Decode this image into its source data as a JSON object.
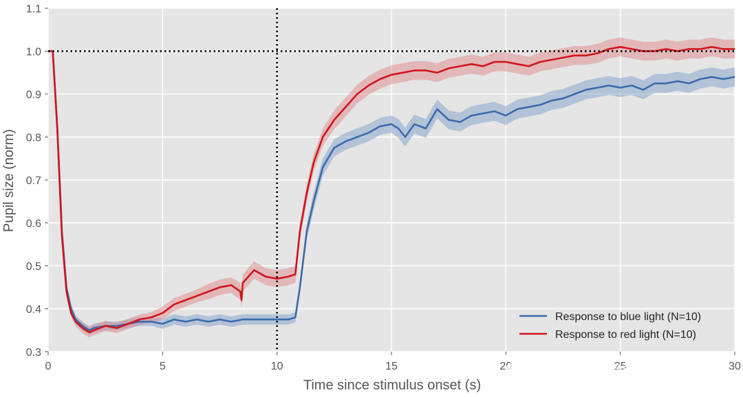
{
  "chart_data": {
    "type": "line",
    "title": "",
    "xlabel": "Time since stimulus onset (s)",
    "ylabel": "Pupil size (norm)",
    "xlim": [
      0,
      30
    ],
    "ylim": [
      0.3,
      1.1
    ],
    "xticks": [
      0,
      5,
      10,
      15,
      20,
      25,
      30
    ],
    "yticks": [
      0.3,
      0.4,
      0.5,
      0.6,
      0.7,
      0.8,
      0.9,
      1.0,
      1.1
    ],
    "xtick_labels": [
      "0",
      "5",
      "10",
      "15",
      "20",
      "25",
      "30"
    ],
    "ytick_labels": [
      "0.3",
      "0.4",
      "0.5",
      "0.6",
      "0.7",
      "0.8",
      "0.9",
      "1.0",
      "1.1"
    ],
    "grid": true,
    "legend_position": "lower-right",
    "reference_lines": [
      {
        "orientation": "vertical",
        "value": 10,
        "style": "dotted",
        "color": "#000000"
      },
      {
        "orientation": "horizontal",
        "value": 1.0,
        "style": "dotted",
        "color": "#000000"
      }
    ],
    "series": [
      {
        "name": "Response to blue light (N=10)",
        "color": "#3a6baa",
        "band_color": "#7f9fc9",
        "x": [
          0,
          0.2,
          0.4,
          0.6,
          0.8,
          1.0,
          1.2,
          1.5,
          1.8,
          2.0,
          2.5,
          3.0,
          3.5,
          4.0,
          4.5,
          5.0,
          5.5,
          6.0,
          6.5,
          7.0,
          7.5,
          8.0,
          8.5,
          9.0,
          9.5,
          10.0,
          10.5,
          10.8,
          11.0,
          11.3,
          11.6,
          12.0,
          12.5,
          13.0,
          13.5,
          14.0,
          14.5,
          15.0,
          15.3,
          15.6,
          16.0,
          16.5,
          17.0,
          17.5,
          18.0,
          18.5,
          19.0,
          19.5,
          20.0,
          20.5,
          21.0,
          21.5,
          22.0,
          22.5,
          23.0,
          23.5,
          24.0,
          24.5,
          25.0,
          25.5,
          26.0,
          26.5,
          27.0,
          27.5,
          28.0,
          28.5,
          29.0,
          29.5,
          30.0
        ],
        "y": [
          1.0,
          1.0,
          0.82,
          0.58,
          0.45,
          0.4,
          0.375,
          0.36,
          0.35,
          0.355,
          0.36,
          0.36,
          0.365,
          0.37,
          0.37,
          0.365,
          0.375,
          0.37,
          0.375,
          0.37,
          0.375,
          0.37,
          0.375,
          0.375,
          0.375,
          0.375,
          0.375,
          0.38,
          0.45,
          0.58,
          0.65,
          0.73,
          0.775,
          0.79,
          0.8,
          0.81,
          0.825,
          0.83,
          0.82,
          0.8,
          0.83,
          0.82,
          0.865,
          0.84,
          0.835,
          0.85,
          0.855,
          0.86,
          0.85,
          0.865,
          0.87,
          0.875,
          0.885,
          0.89,
          0.9,
          0.91,
          0.915,
          0.92,
          0.915,
          0.92,
          0.91,
          0.925,
          0.925,
          0.93,
          0.925,
          0.935,
          0.94,
          0.935,
          0.94
        ],
        "band": [
          0,
          0,
          0.01,
          0.01,
          0.01,
          0.01,
          0.01,
          0.01,
          0.01,
          0.01,
          0.01,
          0.01,
          0.01,
          0.01,
          0.01,
          0.012,
          0.012,
          0.012,
          0.012,
          0.012,
          0.012,
          0.012,
          0.012,
          0.012,
          0.012,
          0.012,
          0.012,
          0.012,
          0.015,
          0.018,
          0.02,
          0.02,
          0.02,
          0.02,
          0.02,
          0.02,
          0.02,
          0.02,
          0.022,
          0.022,
          0.022,
          0.022,
          0.022,
          0.022,
          0.022,
          0.022,
          0.022,
          0.022,
          0.022,
          0.022,
          0.022,
          0.022,
          0.022,
          0.022,
          0.022,
          0.022,
          0.022,
          0.022,
          0.022,
          0.022,
          0.022,
          0.022,
          0.022,
          0.022,
          0.022,
          0.022,
          0.022,
          0.022,
          0.022
        ]
      },
      {
        "name": "Response to red light (N=10)",
        "color": "#d0141b",
        "band_color": "#e08a8c",
        "x": [
          0,
          0.2,
          0.4,
          0.6,
          0.8,
          1.0,
          1.2,
          1.5,
          1.8,
          2.0,
          2.5,
          3.0,
          3.5,
          4.0,
          4.5,
          5.0,
          5.5,
          6.0,
          6.5,
          7.0,
          7.5,
          8.0,
          8.4,
          8.45,
          8.5,
          9.0,
          9.5,
          10.0,
          10.5,
          10.8,
          11.0,
          11.3,
          11.6,
          12.0,
          12.5,
          13.0,
          13.5,
          14.0,
          14.5,
          15.0,
          15.5,
          16.0,
          16.5,
          17.0,
          17.5,
          18.0,
          18.5,
          19.0,
          19.5,
          20.0,
          20.5,
          21.0,
          21.5,
          22.0,
          22.5,
          23.0,
          23.5,
          24.0,
          24.5,
          25.0,
          25.5,
          26.0,
          26.5,
          27.0,
          27.5,
          28.0,
          28.5,
          29.0,
          29.5,
          30.0
        ],
        "y": [
          1.0,
          1.0,
          0.82,
          0.57,
          0.44,
          0.39,
          0.37,
          0.355,
          0.345,
          0.35,
          0.36,
          0.355,
          0.365,
          0.375,
          0.38,
          0.39,
          0.41,
          0.42,
          0.43,
          0.44,
          0.45,
          0.455,
          0.44,
          0.42,
          0.46,
          0.49,
          0.475,
          0.47,
          0.475,
          0.48,
          0.58,
          0.67,
          0.74,
          0.8,
          0.84,
          0.87,
          0.9,
          0.92,
          0.935,
          0.945,
          0.95,
          0.955,
          0.955,
          0.95,
          0.96,
          0.965,
          0.97,
          0.965,
          0.975,
          0.975,
          0.97,
          0.965,
          0.975,
          0.98,
          0.985,
          0.99,
          0.99,
          0.995,
          1.005,
          1.01,
          1.005,
          1.0,
          1.0,
          1.005,
          1.0,
          1.005,
          1.005,
          1.01,
          1.005,
          1.005
        ],
        "band": [
          0,
          0,
          0.01,
          0.01,
          0.01,
          0.01,
          0.01,
          0.012,
          0.012,
          0.012,
          0.012,
          0.012,
          0.012,
          0.012,
          0.012,
          0.015,
          0.015,
          0.015,
          0.015,
          0.018,
          0.018,
          0.018,
          0.02,
          0.02,
          0.02,
          0.02,
          0.02,
          0.02,
          0.02,
          0.02,
          0.02,
          0.02,
          0.02,
          0.02,
          0.022,
          0.022,
          0.022,
          0.022,
          0.022,
          0.022,
          0.022,
          0.022,
          0.022,
          0.022,
          0.022,
          0.022,
          0.022,
          0.022,
          0.022,
          0.022,
          0.022,
          0.022,
          0.022,
          0.022,
          0.022,
          0.022,
          0.022,
          0.022,
          0.022,
          0.022,
          0.022,
          0.022,
          0.022,
          0.022,
          0.022,
          0.022,
          0.022,
          0.022,
          0.022,
          0.022
        ]
      }
    ]
  },
  "watermark": {
    "line1": "公众号 · 元深无际亦",
    "line2": "ID:15266844"
  }
}
